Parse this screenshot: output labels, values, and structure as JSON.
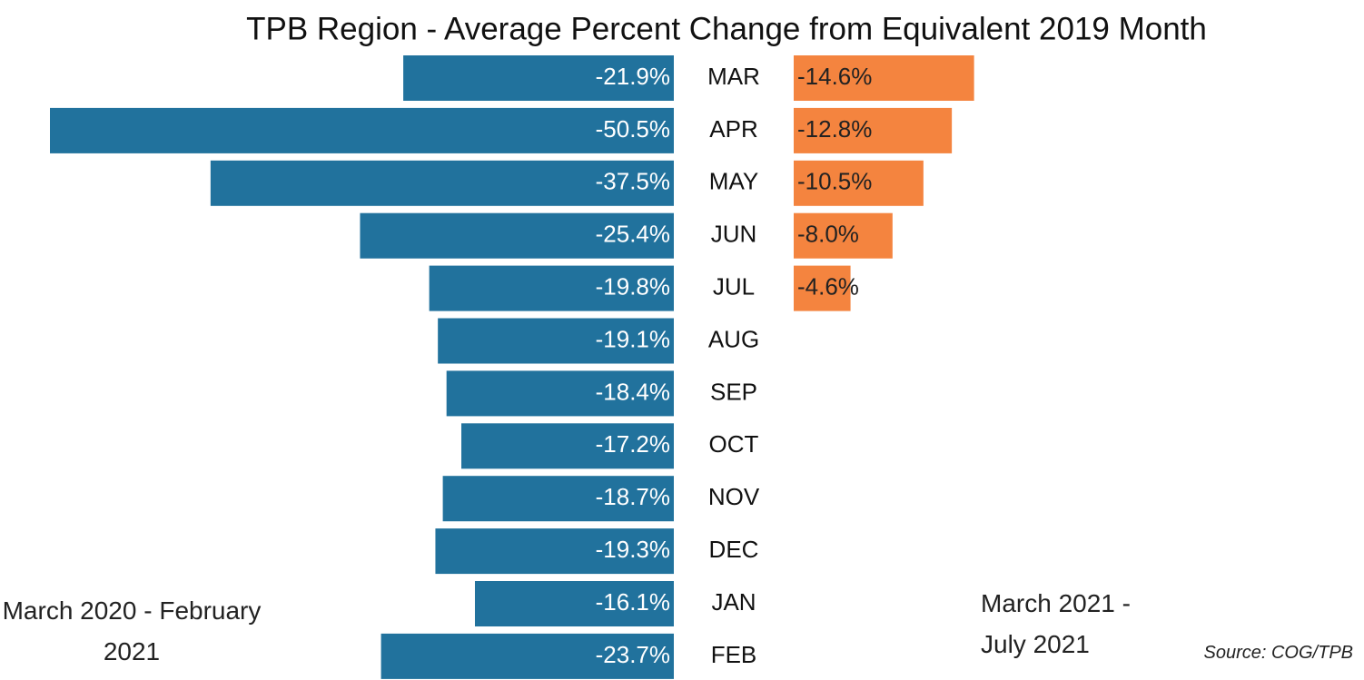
{
  "chart_data": {
    "type": "bar",
    "title": "TPB Region - Average Percent Change from Equivalent 2019 Month",
    "categories": [
      "MAR",
      "APR",
      "MAY",
      "JUN",
      "JUL",
      "AUG",
      "SEP",
      "OCT",
      "NOV",
      "DEC",
      "JAN",
      "FEB"
    ],
    "series": [
      {
        "name": "March 2020 - February 2021",
        "color": "#21729d",
        "values": [
          -21.9,
          -50.5,
          -37.5,
          -25.4,
          -19.8,
          -19.1,
          -18.4,
          -17.2,
          -18.7,
          -19.3,
          -16.1,
          -23.7
        ],
        "value_labels": [
          "-21.9%",
          "-50.5%",
          "-37.5%",
          "-25.4%",
          "-19.8%",
          "-19.1%",
          "-18.4%",
          "-17.2%",
          "-18.7%",
          "-19.3%",
          "-16.1%",
          "-23.7%"
        ]
      },
      {
        "name": "March 2021 - July 2021",
        "color": "#f4843f",
        "values": [
          -14.6,
          -12.8,
          -10.5,
          -8.0,
          -4.6,
          null,
          null,
          null,
          null,
          null,
          null,
          null
        ],
        "value_labels": [
          "-14.6%",
          "-12.8%",
          "-10.5%",
          "-8.0%",
          "-4.6%",
          null,
          null,
          null,
          null,
          null,
          null,
          null
        ]
      }
    ],
    "source": "Source: COG/TPB"
  }
}
